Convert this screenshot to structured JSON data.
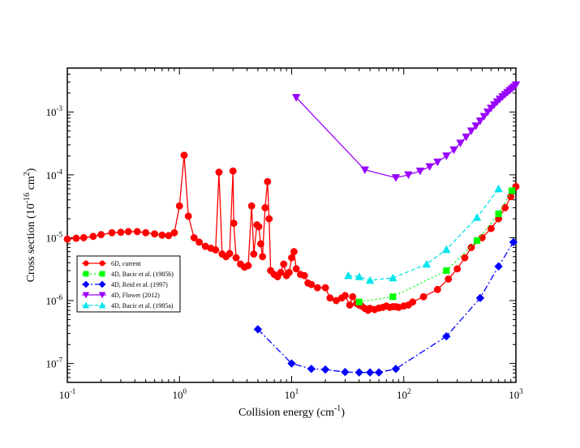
{
  "chart_data": {
    "type": "line",
    "x_scale": "log",
    "y_scale": "log",
    "xlim": [
      0.1,
      1000
    ],
    "ylim": [
      5e-08,
      0.005
    ],
    "grid": false,
    "legend_position": "lower-left",
    "xlabel": {
      "main": "Collision energy (cm",
      "sup": "-1",
      "end": ")"
    },
    "ylabel": {
      "main": "Cross section (10",
      "sup1": "-16",
      "mid": " cm",
      "sup2": "2",
      "end": ")"
    },
    "x_ticks": [
      {
        "value": 0.1,
        "base": "10",
        "exp": "-1"
      },
      {
        "value": 1,
        "base": "10",
        "exp": "0"
      },
      {
        "value": 10,
        "base": "10",
        "exp": "1"
      },
      {
        "value": 100,
        "base": "10",
        "exp": "2"
      },
      {
        "value": 1000,
        "base": "10",
        "exp": "3"
      }
    ],
    "y_ticks": [
      {
        "value": 1e-07,
        "base": "10",
        "exp": "-7"
      },
      {
        "value": 1e-06,
        "base": "10",
        "exp": "-6"
      },
      {
        "value": 1e-05,
        "base": "10",
        "exp": "-5"
      },
      {
        "value": 0.0001,
        "base": "10",
        "exp": "-4"
      },
      {
        "value": 0.001,
        "base": "10",
        "exp": "-3"
      }
    ],
    "series": [
      {
        "name": "6D, current",
        "color": "#ff0000",
        "marker": "circle",
        "dash": "",
        "x": [
          0.1,
          0.12,
          0.14,
          0.17,
          0.2,
          0.25,
          0.3,
          0.35,
          0.42,
          0.5,
          0.6,
          0.7,
          0.8,
          0.9,
          1.0,
          1.1,
          1.2,
          1.35,
          1.5,
          1.7,
          1.9,
          2.1,
          2.25,
          2.4,
          2.6,
          2.8,
          3.0,
          3.05,
          3.2,
          3.5,
          3.8,
          4.1,
          4.4,
          4.6,
          4.9,
          5.1,
          5.3,
          5.5,
          5.8,
          6.1,
          6.3,
          6.5,
          7.0,
          7.5,
          8.0,
          8.5,
          9.0,
          9.5,
          10,
          10.5,
          11,
          12,
          13,
          14,
          15,
          17,
          20,
          22,
          25,
          28,
          30,
          33,
          35,
          38,
          40,
          42,
          45,
          48,
          50,
          55,
          60,
          65,
          70,
          75,
          80,
          85,
          90,
          100,
          110,
          120,
          150,
          200,
          250,
          300,
          350,
          400,
          500,
          600,
          700,
          800,
          900,
          1000
        ],
        "y": [
          9.5e-06,
          9.8e-06,
          1e-05,
          1.05e-05,
          1.12e-05,
          1.2e-05,
          1.22e-05,
          1.25e-05,
          1.25e-05,
          1.2e-05,
          1.15e-05,
          1.1e-05,
          1.08e-05,
          1.2e-05,
          3.2e-05,
          0.000205,
          2.2e-05,
          1e-05,
          8.5e-06,
          7.3e-06,
          6.8e-06,
          6.4e-06,
          0.00011,
          5.5e-06,
          5e-06,
          5.6e-06,
          0.000115,
          1.7e-05,
          4.8e-06,
          3.8e-06,
          3.4e-06,
          3.6e-06,
          3.2e-05,
          5.5e-06,
          1.6e-05,
          1.5e-05,
          8e-06,
          5e-06,
          3e-05,
          7.8e-05,
          2e-05,
          3e-06,
          2.6e-06,
          2.4e-06,
          2.8e-06,
          3.8e-06,
          2.5e-06,
          2.8e-06,
          4.8e-06,
          6e-06,
          3.2e-06,
          2.6e-06,
          2.5e-06,
          1.9e-06,
          1.8e-06,
          1.6e-06,
          1.6e-06,
          1.1e-06,
          1e-06,
          1.1e-06,
          1.2e-06,
          8.5e-07,
          1.15e-06,
          9e-07,
          8.5e-07,
          8.2e-07,
          7.5e-07,
          7e-07,
          7.5e-07,
          7.2e-07,
          7.6e-07,
          7.8e-07,
          8.2e-07,
          7.8e-07,
          8e-07,
          8e-07,
          7.8e-07,
          8.2e-07,
          8.5e-07,
          9.5e-07,
          1.15e-06,
          1.5e-06,
          2.2e-06,
          3.2e-06,
          4.8e-06,
          7e-06,
          1e-05,
          1.4e-05,
          2e-05,
          3e-05,
          4.5e-05,
          6.5e-05
        ]
      },
      {
        "name": "4D, Bacic et al. (1985b)",
        "color": "#00ff00",
        "marker": "square",
        "dash": "2,3",
        "x": [
          40,
          80,
          240,
          450,
          700,
          920
        ],
        "y": [
          9.5e-07,
          1.15e-06,
          3e-06,
          9e-06,
          2.4e-05,
          5.6e-05
        ]
      },
      {
        "name": "4D, Reid et al. (1997)",
        "color": "#0000ff",
        "marker": "diamond",
        "dash": "8,3,2,3",
        "x": [
          5,
          10,
          15,
          20,
          30,
          40,
          50,
          60,
          85,
          240,
          480,
          700,
          950
        ],
        "y": [
          3.5e-07,
          1e-07,
          8.2e-08,
          8e-08,
          7.3e-08,
          7.2e-08,
          7.2e-08,
          7.2e-08,
          8.2e-08,
          2.7e-07,
          1.1e-06,
          3.5e-06,
          8.5e-06
        ]
      },
      {
        "name": "4D, Flower (2012)",
        "color": "#9900ff",
        "marker": "triangle-down",
        "dash": "",
        "x": [
          11,
          45,
          85,
          110,
          140,
          170,
          200,
          240,
          280,
          320,
          360,
          400,
          440,
          480,
          520,
          560,
          600,
          640,
          680,
          720,
          760,
          800,
          840,
          880,
          920,
          960,
          1000
        ],
        "y": [
          0.0017,
          0.00012,
          9e-05,
          0.0001,
          0.000115,
          0.000135,
          0.00016,
          0.0002,
          0.00025,
          0.00032,
          0.0004,
          0.0005,
          0.0006,
          0.00072,
          0.00085,
          0.001,
          0.00115,
          0.0013,
          0.00145,
          0.0016,
          0.00175,
          0.0019,
          0.00205,
          0.0022,
          0.00235,
          0.0025,
          0.0027
        ]
      },
      {
        "name": "4D, Bacic et al. (1985a)",
        "color": "#00e5ee",
        "marker": "triangle-up",
        "dash": "5,3",
        "x": [
          32,
          40,
          50,
          80,
          160,
          240,
          450,
          700
        ],
        "y": [
          2.5e-06,
          2.4e-06,
          2.1e-06,
          2.3e-06,
          3.8e-06,
          6.5e-06,
          2.1e-05,
          6e-05
        ]
      }
    ]
  }
}
